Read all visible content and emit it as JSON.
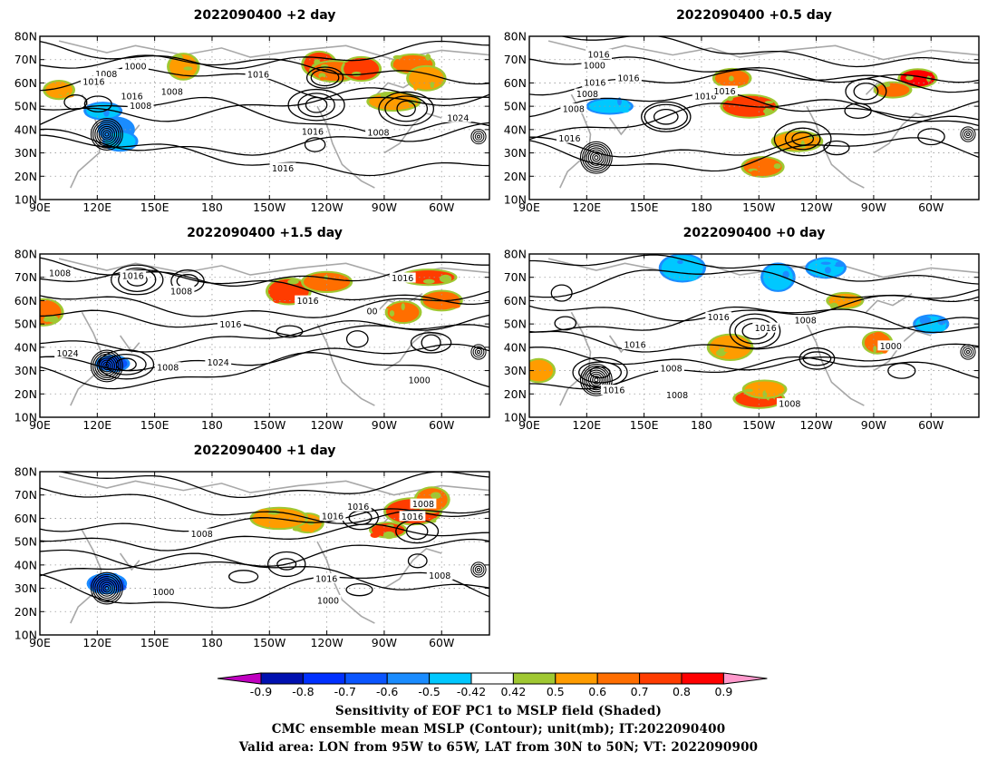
{
  "chart_data": {
    "type": "contour",
    "panels": [
      {
        "title": "2022090400 +2 day",
        "contour_labels": [
          "1008",
          "1016",
          "1000",
          "1016",
          "1016",
          "1024",
          "1008",
          "1016",
          "1016",
          "1008",
          "1008"
        ],
        "shading": [
          {
            "lon": 165,
            "lat": 67,
            "v": 0.55
          },
          {
            "lon": 236,
            "lat": 68,
            "v": 0.7
          },
          {
            "lon": 244,
            "lat": 65,
            "v": 0.6
          },
          {
            "lon": 258,
            "lat": 66,
            "v": 0.7
          },
          {
            "lon": 285,
            "lat": 68,
            "v": 0.6
          },
          {
            "lon": 292,
            "lat": 62,
            "v": 0.5
          },
          {
            "lon": 275,
            "lat": 52,
            "v": 0.5
          },
          {
            "lon": 130,
            "lat": 40,
            "v": -0.6
          },
          {
            "lon": 123,
            "lat": 48,
            "v": -0.5
          },
          {
            "lon": 132,
            "lat": 35,
            "v": -0.5
          },
          {
            "lon": 100,
            "lat": 57,
            "v": 0.5
          }
        ]
      },
      {
        "title": "2022090400 +0.5 day",
        "contour_labels": [
          "1008",
          "1016",
          "1008",
          "1016",
          "1000",
          "1016",
          "1016",
          "1016",
          "1016"
        ],
        "shading": [
          {
            "lon": 196,
            "lat": 62,
            "v": 0.6
          },
          {
            "lon": 205,
            "lat": 50,
            "v": 0.7
          },
          {
            "lon": 293,
            "lat": 62,
            "v": 0.8
          },
          {
            "lon": 280,
            "lat": 57,
            "v": 0.6
          },
          {
            "lon": 212,
            "lat": 24,
            "v": 0.6
          },
          {
            "lon": 230,
            "lat": 35,
            "v": 0.5
          },
          {
            "lon": 132,
            "lat": 50,
            "v": -0.5
          }
        ]
      },
      {
        "title": "2022090400 +1.5 day",
        "contour_labels": [
          "1008",
          "1008",
          "1016",
          "1016",
          "1000",
          "1008",
          "1024",
          "1016",
          "1024",
          "1016",
          "00"
        ],
        "shading": [
          {
            "lon": 220,
            "lat": 64,
            "v": 0.7
          },
          {
            "lon": 240,
            "lat": 68,
            "v": 0.6
          },
          {
            "lon": 293,
            "lat": 70,
            "v": 0.7
          },
          {
            "lon": 280,
            "lat": 55,
            "v": 0.6
          },
          {
            "lon": 300,
            "lat": 60,
            "v": 0.6
          },
          {
            "lon": 128,
            "lat": 33,
            "v": -0.7
          },
          {
            "lon": 92,
            "lat": 55,
            "v": 0.6
          }
        ]
      },
      {
        "title": "2022090400 +0 day",
        "contour_labels": [
          "1016",
          "1016",
          "1008",
          "1000",
          "1008",
          "1016",
          "1008",
          "1016",
          "1008"
        ],
        "shading": [
          {
            "lon": 210,
            "lat": 18,
            "v": 0.7
          },
          {
            "lon": 213,
            "lat": 22,
            "v": 0.5
          },
          {
            "lon": 170,
            "lat": 74,
            "v": -0.5
          },
          {
            "lon": 220,
            "lat": 70,
            "v": -0.5
          },
          {
            "lon": 245,
            "lat": 74,
            "v": -0.5
          },
          {
            "lon": 195,
            "lat": 40,
            "v": 0.5
          },
          {
            "lon": 95,
            "lat": 30,
            "v": 0.5
          },
          {
            "lon": 272,
            "lat": 42,
            "v": 0.6
          },
          {
            "lon": 300,
            "lat": 50,
            "v": -0.5
          },
          {
            "lon": 255,
            "lat": 60,
            "v": 0.5
          }
        ]
      },
      {
        "title": "2022090400 +1 day",
        "contour_labels": [
          "1000",
          "1008",
          "1016",
          "1016",
          "1000",
          "1008",
          "1016",
          "1016",
          "1008"
        ],
        "shading": [
          {
            "lon": 285,
            "lat": 63,
            "v": 0.7
          },
          {
            "lon": 272,
            "lat": 55,
            "v": 0.7
          },
          {
            "lon": 295,
            "lat": 68,
            "v": 0.6
          },
          {
            "lon": 230,
            "lat": 58,
            "v": 0.5
          },
          {
            "lon": 125,
            "lat": 32,
            "v": -0.7
          },
          {
            "lon": 215,
            "lat": 60,
            "v": 0.5
          }
        ]
      }
    ],
    "x_ticks": [
      "90E",
      "120E",
      "150E",
      "180",
      "150W",
      "120W",
      "90W",
      "60W"
    ],
    "y_ticks": [
      "10N",
      "20N",
      "30N",
      "40N",
      "50N",
      "60N",
      "70N",
      "80N"
    ],
    "lon_range": [
      90,
      325
    ],
    "lat_range": [
      10,
      80
    ],
    "colorbar": {
      "levels": [
        "-0.9",
        "-0.8",
        "-0.7",
        "-0.6",
        "-0.5",
        "-0.42",
        "0.42",
        "0.5",
        "0.6",
        "0.7",
        "0.8",
        "0.9"
      ],
      "colors": [
        "#c000c0",
        "#0010b0",
        "#0030ff",
        "#0a55ff",
        "#1a8cff",
        "#00c8ff",
        "#ffffff",
        "#a0c832",
        "#ff9c00",
        "#ff6e00",
        "#ff3c00",
        "#ff0000",
        "#ff99cc"
      ]
    },
    "caption": [
      "Sensitivity of EOF PC1 to MSLP field (Shaded)",
      "CMC ensemble mean MSLP (Contour); unit(mb); IT:2022090400",
      "Valid area: LON from 95W to 65W, LAT from 30N to 50N; VT: 2022090900"
    ]
  }
}
